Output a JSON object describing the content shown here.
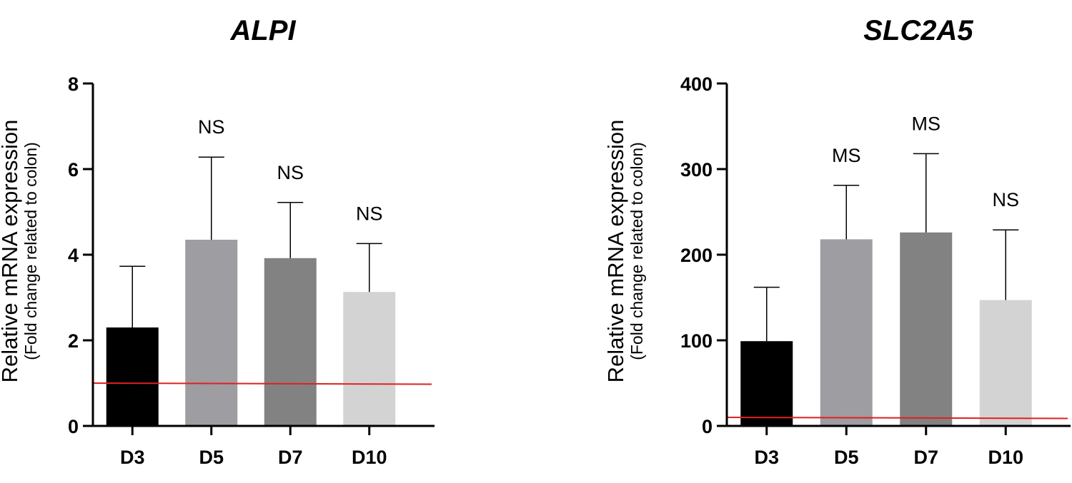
{
  "chart_data": [
    {
      "type": "bar",
      "title": "ALPI",
      "ylabel": "Relative mRNA expression",
      "ylabel_sub": "(Fold change related to colon)",
      "ylim": [
        0,
        8
      ],
      "yticks": [
        "0",
        "2",
        "4",
        "6",
        "8"
      ],
      "yticks_values": [
        0,
        2,
        4,
        6,
        8
      ],
      "categories": [
        "D3",
        "D5",
        "D7",
        "D10"
      ],
      "values": [
        2.3,
        4.35,
        3.92,
        3.13
      ],
      "error": [
        1.43,
        1.93,
        1.3,
        1.13
      ],
      "annotations": [
        "",
        "NS",
        "NS",
        "NS"
      ],
      "bar_colors": [
        "#000000",
        "#9e9da2",
        "#828282",
        "#d3d3d3"
      ],
      "reference_line": {
        "value": 1.0,
        "color": "#e02020"
      }
    },
    {
      "type": "bar",
      "title": "SLC2A5",
      "ylabel": "Relative mRNA expression",
      "ylabel_sub": "(Fold change related to colon)",
      "ylim": [
        0,
        400
      ],
      "yticks": [
        "0",
        "100",
        "200",
        "300",
        "400"
      ],
      "yticks_values": [
        0,
        100,
        200,
        300,
        400
      ],
      "categories": [
        "D3",
        "D5",
        "D7",
        "D10"
      ],
      "values": [
        99,
        218,
        226,
        147
      ],
      "error": [
        63,
        63,
        92,
        82
      ],
      "annotations": [
        "",
        "MS",
        "MS",
        "NS"
      ],
      "bar_colors": [
        "#000000",
        "#9e9da2",
        "#828282",
        "#d3d3d3"
      ],
      "reference_line": {
        "value": 10,
        "color": "#e02020"
      }
    }
  ]
}
